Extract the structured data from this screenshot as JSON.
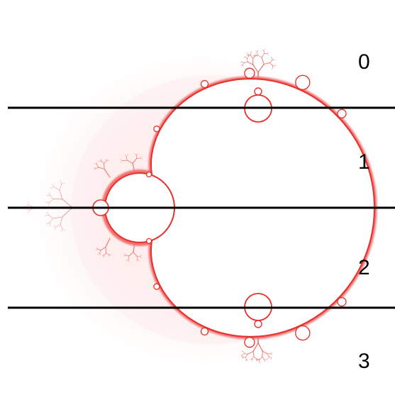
{
  "diagram": {
    "subject": "Mandelbrot set",
    "colors": {
      "background": "#ffffff",
      "halo": "#fde8e8",
      "boundary": "#e8302b",
      "boundary_glow": "#f6a0a0",
      "spark": "#ffd34a",
      "set_interior": "#ffffff",
      "divider": "#000000"
    },
    "regions": [
      {
        "label": "0"
      },
      {
        "label": "1"
      },
      {
        "label": "2"
      },
      {
        "label": "3"
      }
    ]
  }
}
